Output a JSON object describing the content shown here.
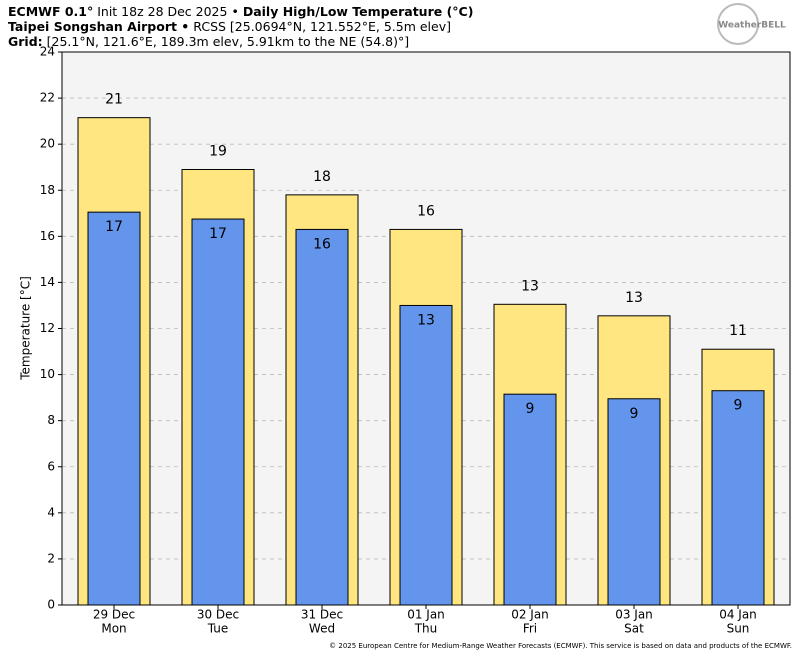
{
  "chart_data": {
    "type": "bar",
    "title": [
      "ECMWF 0.1°",
      "Init 18z 28 Dec 2025 •",
      "Daily High/Low Temperature (°C)"
    ],
    "subtitle": [
      "Taipei Songshan Airport •",
      "RCSS [25.0694°N, 121.552°E, 5.5m elev]"
    ],
    "grid_info": [
      "Grid:",
      "[25.1°N, 121.6°E, 189.3m elev, 5.91km to the NE (54.8)°]"
    ],
    "logo": "WeatherBELL",
    "footer": "© 2025 European Centre for Medium-Range Weather Forecasts (ECMWF). This service is based on data and products of the ECMWF.",
    "ylabel": "Temperature [°C]",
    "categories": [
      [
        "29 Dec",
        "Mon"
      ],
      [
        "30 Dec",
        "Tue"
      ],
      [
        "31 Dec",
        "Wed"
      ],
      [
        "01 Jan",
        "Thu"
      ],
      [
        "02 Jan",
        "Fri"
      ],
      [
        "03 Jan",
        "Sat"
      ],
      [
        "04 Jan",
        "Sun"
      ]
    ],
    "series": [
      {
        "name": "High",
        "color": "#ffe680",
        "values": [
          21.15,
          18.9,
          17.8,
          16.3,
          13.05,
          12.55,
          11.1
        ],
        "value_labels": [
          "21",
          "19",
          "18",
          "16",
          "13",
          "13",
          "11"
        ]
      },
      {
        "name": "Low",
        "color": "#6495ed",
        "values": [
          17.05,
          16.75,
          16.3,
          13.0,
          9.15,
          8.95,
          9.3
        ],
        "value_labels": [
          "17",
          "17",
          "16",
          "13",
          "9",
          "9",
          "9"
        ]
      }
    ],
    "ylim": [
      0,
      24
    ],
    "yticks": [
      0,
      2,
      4,
      6,
      8,
      10,
      12,
      14,
      16,
      18,
      20,
      22,
      24
    ],
    "grid": true
  }
}
